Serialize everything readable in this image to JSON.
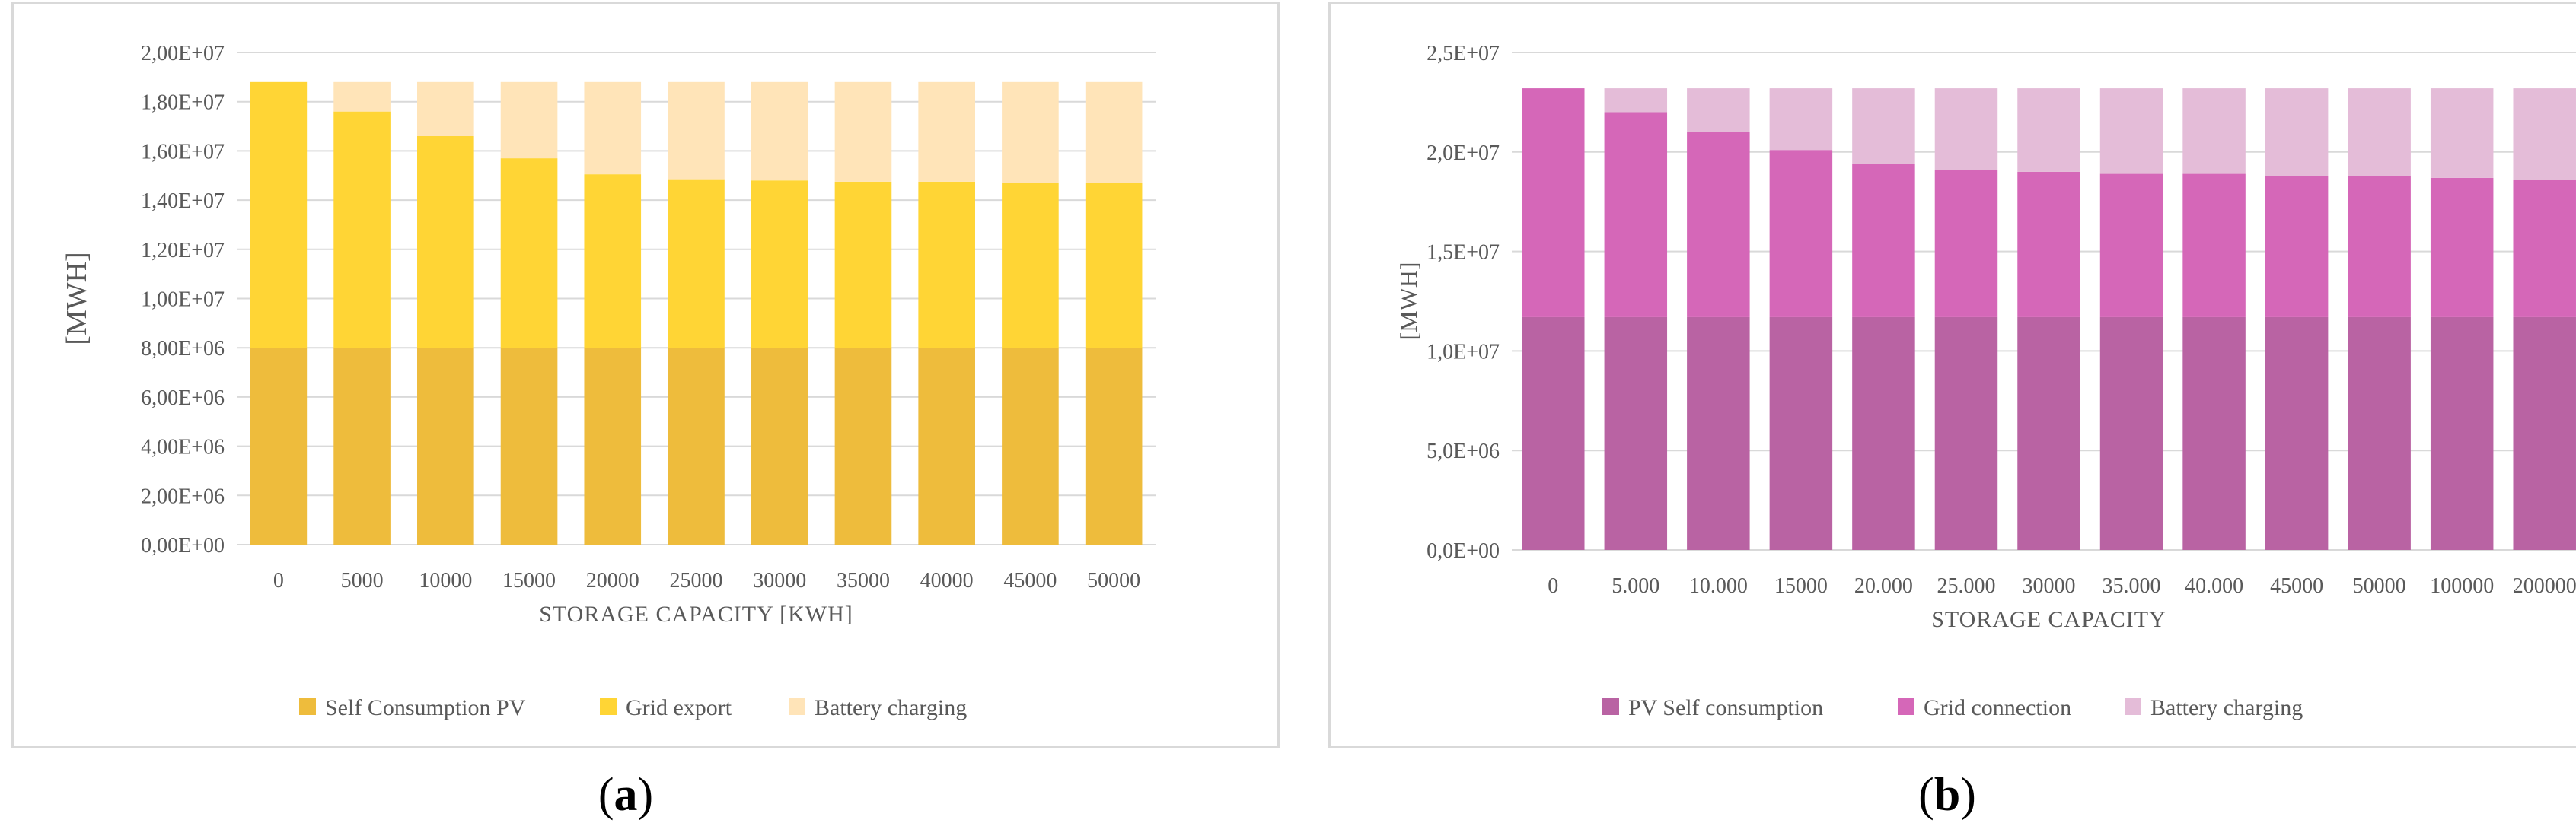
{
  "chart_data": [
    {
      "type": "bar",
      "stacked": true,
      "ylabel": "[MWH]",
      "xlabel": "STORAGE  CAPACITY [KWH]",
      "ylim": [
        0,
        20000000
      ],
      "yticks": [
        "0,00E+00",
        "2,00E+06",
        "4,00E+06",
        "6,00E+06",
        "8,00E+06",
        "1,00E+07",
        "1,20E+07",
        "1,40E+07",
        "1,60E+07",
        "1,80E+07",
        "2,00E+07"
      ],
      "categories": [
        "0",
        "5000",
        "10000",
        "15000",
        "20000",
        "25000",
        "30000",
        "35000",
        "40000",
        "45000",
        "50000"
      ],
      "legend_position": "bottom",
      "series": [
        {
          "name": "Self Consumption PV",
          "color": "#eebc3c",
          "values": [
            8000000,
            8000000,
            8000000,
            8000000,
            8000000,
            8000000,
            8000000,
            8000000,
            8000000,
            8000000,
            8000000
          ]
        },
        {
          "name": "Grid export",
          "color": "#ffd535",
          "values": [
            10800000,
            9600000,
            8600000,
            7700000,
            7050000,
            6850000,
            6800000,
            6750000,
            6750000,
            6700000,
            6700000
          ]
        },
        {
          "name": "Battery charging",
          "color": "#ffe4b8",
          "values": [
            0,
            1200000,
            2200000,
            3100000,
            3750000,
            3950000,
            4000000,
            4050000,
            4050000,
            4100000,
            4100000
          ]
        }
      ]
    },
    {
      "type": "bar",
      "stacked": true,
      "ylabel": "[MWH]",
      "xlabel": "STORAGE CAPACITY",
      "ylim": [
        0,
        25000000
      ],
      "yticks": [
        "0,0E+00",
        "5,0E+06",
        "1,0E+07",
        "1,5E+07",
        "2,0E+07",
        "2,5E+07"
      ],
      "categories": [
        "0",
        "5.000",
        "10.000",
        "15000",
        "20.000",
        "25.000",
        "30000",
        "35.000",
        "40.000",
        "45000",
        "50000",
        "100000",
        "200000"
      ],
      "legend_position": "bottom",
      "series": [
        {
          "name": "PV Self consumption",
          "color": "#b963a3",
          "values": [
            11700000,
            11700000,
            11700000,
            11700000,
            11700000,
            11700000,
            11700000,
            11700000,
            11700000,
            11700000,
            11700000,
            11700000,
            11700000
          ]
        },
        {
          "name": "Grid connection",
          "color": "#d567b8",
          "values": [
            11500000,
            10300000,
            9300000,
            8400000,
            7700000,
            7400000,
            7300000,
            7200000,
            7200000,
            7100000,
            7100000,
            7000000,
            6900000
          ]
        },
        {
          "name": "Battery charging",
          "color": "#e4bcd8",
          "values": [
            0,
            1200000,
            2200000,
            3100000,
            3800000,
            4100000,
            4200000,
            4300000,
            4300000,
            4400000,
            4400000,
            4500000,
            4600000
          ]
        }
      ]
    }
  ],
  "captions": {
    "a": {
      "open": "(",
      "letter": "a",
      "close": ")"
    },
    "b": {
      "open": "(",
      "letter": "b",
      "close": ")"
    }
  }
}
